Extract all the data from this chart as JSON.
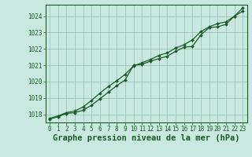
{
  "title": "Graphe pression niveau de la mer (hPa)",
  "bg_color": "#c8e8e0",
  "grid_color": "#8fbfb0",
  "line_color": "#1a5c28",
  "marker_color": "#1a5c28",
  "xlim": [
    -0.5,
    23.5
  ],
  "ylim": [
    1017.5,
    1024.7
  ],
  "yticks": [
    1018,
    1019,
    1020,
    1021,
    1022,
    1023,
    1024
  ],
  "xticks": [
    0,
    1,
    2,
    3,
    4,
    5,
    6,
    7,
    8,
    9,
    10,
    11,
    12,
    13,
    14,
    15,
    16,
    17,
    18,
    19,
    20,
    21,
    22,
    23
  ],
  "series1": [
    1017.7,
    1017.85,
    1018.05,
    1018.1,
    1018.25,
    1018.55,
    1018.95,
    1019.35,
    1019.75,
    1020.1,
    1021.0,
    1021.05,
    1021.25,
    1021.4,
    1021.55,
    1021.85,
    1022.1,
    1022.15,
    1022.85,
    1023.3,
    1023.35,
    1023.5,
    1024.0,
    1024.3
  ],
  "series2": [
    1017.75,
    1017.9,
    1018.1,
    1018.2,
    1018.45,
    1018.85,
    1019.3,
    1019.7,
    1020.05,
    1020.45,
    1020.95,
    1021.15,
    1021.35,
    1021.6,
    1021.75,
    1022.05,
    1022.25,
    1022.55,
    1023.05,
    1023.35,
    1023.55,
    1023.65,
    1024.0,
    1024.5
  ],
  "title_fontsize": 7.5,
  "tick_fontsize": 5.5,
  "title_color": "#1a5c28",
  "tick_color": "#1a5c28",
  "spine_color": "#1a5c28",
  "xlabel_pad": 1
}
